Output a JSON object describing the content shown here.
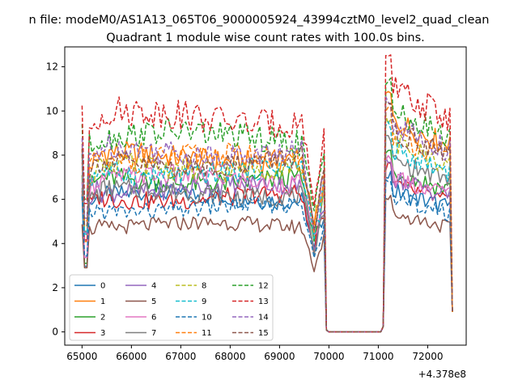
{
  "figure": {
    "suptitle": "n file: modeM0/AS1A13_065T06_9000005924_43994cztM0_level2_quad_clean",
    "offset_label": "+4.378e8"
  },
  "chart_data": {
    "type": "line",
    "title": "Quadrant 1 module wise count rates with 100.0s bins.",
    "xlabel": "",
    "ylabel": "",
    "x_offset": 437800000,
    "xlim": [
      64650,
      72780
    ],
    "ylim": [
      -0.6,
      12.9
    ],
    "xticks": [
      65000,
      66000,
      67000,
      68000,
      69000,
      70000,
      71000,
      72000
    ],
    "xtick_labels": [
      "65000",
      "66000",
      "67000",
      "68000",
      "69000",
      "70000",
      "71000",
      "72000"
    ],
    "yticks": [
      0,
      2,
      4,
      6,
      8,
      10,
      12
    ],
    "ytick_labels": [
      "0",
      "2",
      "4",
      "6",
      "8",
      "10",
      "12"
    ],
    "grid": false,
    "legend_position": "lower-left",
    "legend_columns": 4,
    "series": [
      {
        "name": "0",
        "color": "#1f77b4",
        "dash": "solid",
        "level1": 6.1,
        "level2": 6.4,
        "spike": 4.5
      },
      {
        "name": "1",
        "color": "#ff7f0e",
        "dash": "solid",
        "level1": 7.9,
        "level2": 9.6,
        "spike": 6.2
      },
      {
        "name": "2",
        "color": "#2ca02c",
        "dash": "solid",
        "level1": 6.9,
        "level2": 7.3,
        "spike": 4.7
      },
      {
        "name": "3",
        "color": "#d62728",
        "dash": "solid",
        "level1": 6.1,
        "level2": 6.7,
        "spike": 6.3
      },
      {
        "name": "4",
        "color": "#9467bd",
        "dash": "solid",
        "level1": 6.5,
        "level2": 7.0,
        "spike": 6.8
      },
      {
        "name": "5",
        "color": "#8c564b",
        "dash": "solid",
        "level1": 4.8,
        "level2": 5.4,
        "spike": 4.4
      },
      {
        "name": "6",
        "color": "#e377c2",
        "dash": "solid",
        "level1": 6.9,
        "level2": 7.1,
        "spike": 5.1
      },
      {
        "name": "7",
        "color": "#7f7f7f",
        "dash": "solid",
        "level1": 6.3,
        "level2": 7.8,
        "spike": 6.9
      },
      {
        "name": "8",
        "color": "#bcbd22",
        "dash": "dashed",
        "level1": 7.5,
        "level2": 8.6,
        "spike": 7.2
      },
      {
        "name": "9",
        "color": "#17becf",
        "dash": "dashed",
        "level1": 7.3,
        "level2": 8.3,
        "spike": 6.7
      },
      {
        "name": "10",
        "color": "#1f77b4",
        "dash": "dashed",
        "level1": 5.6,
        "level2": 6.1,
        "spike": 5.2
      },
      {
        "name": "11",
        "color": "#ff7f0e",
        "dash": "dashed",
        "level1": 7.8,
        "level2": 9.0,
        "spike": 7.6
      },
      {
        "name": "12",
        "color": "#2ca02c",
        "dash": "dashed",
        "level1": 8.8,
        "level2": 10.0,
        "spike": 9.1
      },
      {
        "name": "13",
        "color": "#d62728",
        "dash": "dashed",
        "level1": 9.7,
        "level2": 11.0,
        "spike": 8.8
      },
      {
        "name": "14",
        "color": "#9467bd",
        "dash": "dashed",
        "level1": 8.2,
        "level2": 9.4,
        "spike": 7.8
      },
      {
        "name": "15",
        "color": "#8c564b",
        "dash": "dashed",
        "level1": 7.7,
        "level2": 9.1,
        "spike": 7.3
      }
    ]
  }
}
